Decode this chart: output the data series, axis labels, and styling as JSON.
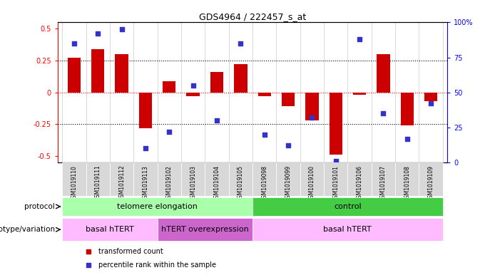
{
  "title": "GDS4964 / 222457_s_at",
  "samples": [
    "GSM1019110",
    "GSM1019111",
    "GSM1019112",
    "GSM1019113",
    "GSM1019102",
    "GSM1019103",
    "GSM1019104",
    "GSM1019105",
    "GSM1019098",
    "GSM1019099",
    "GSM1019100",
    "GSM1019101",
    "GSM1019106",
    "GSM1019107",
    "GSM1019108",
    "GSM1019109"
  ],
  "bar_values": [
    0.27,
    0.34,
    0.3,
    -0.28,
    0.09,
    -0.03,
    0.16,
    0.22,
    -0.03,
    -0.11,
    -0.22,
    -0.49,
    -0.02,
    0.3,
    -0.26,
    -0.07
  ],
  "dot_values_pct": [
    85,
    92,
    95,
    10,
    22,
    55,
    30,
    85,
    20,
    12,
    32,
    1,
    88,
    35,
    17,
    42
  ],
  "bar_color": "#cc0000",
  "dot_color": "#3333cc",
  "ylim_left": [
    -0.55,
    0.55
  ],
  "yticks_left": [
    -0.5,
    -0.25,
    0.0,
    0.25,
    0.5
  ],
  "ytick_labels_left": [
    "-0.5",
    "-0.25",
    "0",
    "0.25",
    "0.5"
  ],
  "yticks_right_pct": [
    0,
    25,
    50,
    75,
    100
  ],
  "hline_red": 0.0,
  "dotted_lines": [
    -0.25,
    0.25
  ],
  "protocol_groups": [
    {
      "label": "telomere elongation",
      "start": 0,
      "end": 7,
      "color": "#aaffaa"
    },
    {
      "label": "control",
      "start": 8,
      "end": 15,
      "color": "#44cc44"
    }
  ],
  "genotype_groups": [
    {
      "label": "basal hTERT",
      "start": 0,
      "end": 3,
      "color": "#ffbbff"
    },
    {
      "label": "hTERT overexpression",
      "start": 4,
      "end": 7,
      "color": "#cc66cc"
    },
    {
      "label": "basal hTERT",
      "start": 8,
      "end": 15,
      "color": "#ffbbff"
    }
  ],
  "legend_items": [
    {
      "label": "transformed count",
      "color": "#cc0000"
    },
    {
      "label": "percentile rank within the sample",
      "color": "#3333cc"
    }
  ],
  "xlabel_protocol": "protocol",
  "xlabel_genotype": "genotype/variation"
}
